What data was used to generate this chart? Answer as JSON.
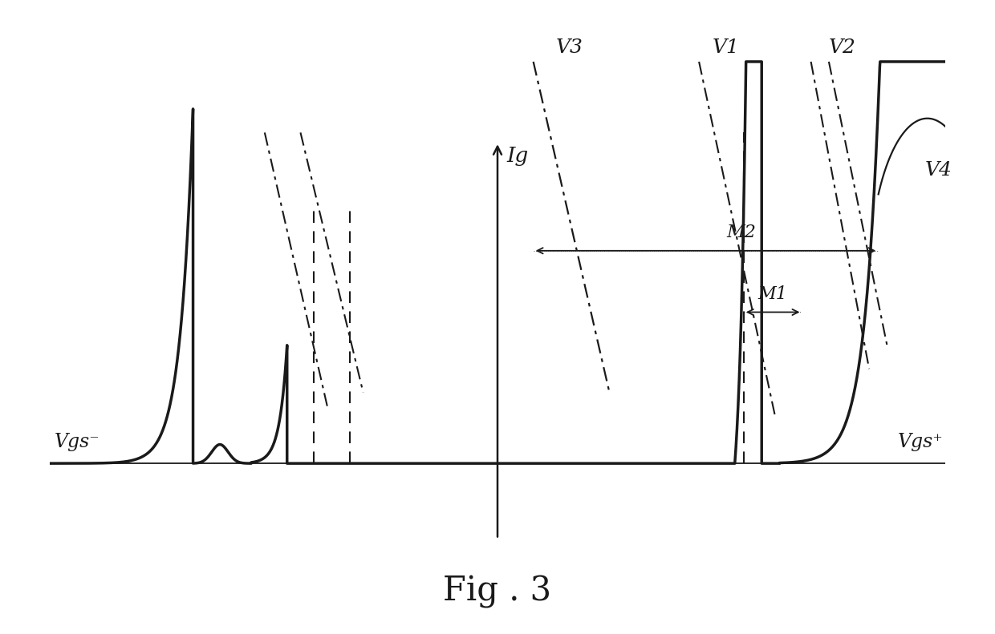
{
  "title": "Fig . 3",
  "title_fontsize": 30,
  "vgs_neg_label": "Vgs⁻",
  "vgs_pos_label": "Vgs⁺",
  "ig_label": "Ig",
  "v1_label": "V1",
  "v2_label": "V2",
  "v3_label": "V3",
  "v4_label": "V4",
  "m1_label": "M1",
  "m2_label": "M2",
  "background_color": "#ffffff",
  "line_color": "#1a1a1a",
  "xlim": [
    -10,
    10
  ],
  "ylim": [
    -2.0,
    9.0
  ],
  "curve_lw": 2.2,
  "dash_lw": 1.5
}
